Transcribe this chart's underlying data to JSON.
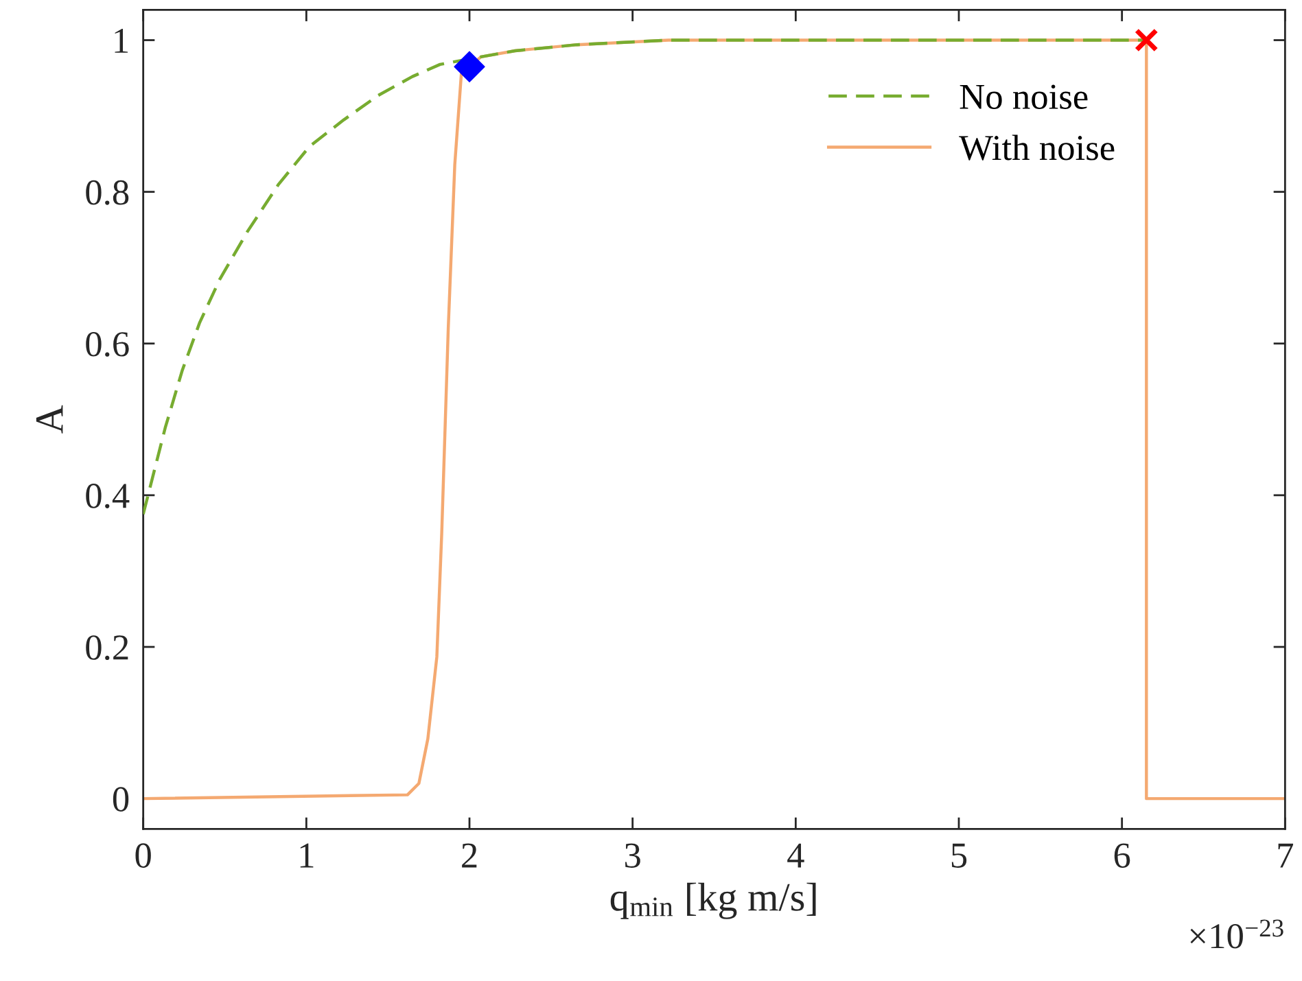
{
  "chart_data": {
    "type": "line",
    "xlabel": "q$_{min}$ [kg m/s]",
    "ylabel": "A",
    "annotations": [
      "×10$^{−23}$"
    ],
    "xlim": [
      0,
      7
    ],
    "ylim": [
      -0.04,
      1.04
    ],
    "xticks": [
      0,
      1,
      2,
      3,
      4,
      5,
      6,
      7
    ],
    "yticks": [
      0,
      0.2,
      0.4,
      0.6,
      0.8,
      1
    ],
    "grid": false,
    "legend": "top right",
    "series": [
      {
        "name": "With noise",
        "color": "#f4a971",
        "line_style": "solid",
        "marker": "none",
        "x": [
          0,
          1.62,
          1.69,
          1.745,
          1.8,
          1.83,
          1.87,
          1.91,
          1.95,
          2.07,
          2.28,
          2.66,
          3.22,
          6.15,
          6.15,
          7
        ],
        "values": [
          0,
          0.005,
          0.02,
          0.079,
          0.187,
          0.35,
          0.62,
          0.836,
          0.955,
          0.978,
          0.986,
          0.994,
          1,
          1,
          0,
          0
        ]
      },
      {
        "name": "No noise",
        "color": "#77ac30",
        "line_style": "dashed",
        "marker": "none",
        "x": [
          0,
          0.135,
          0.24,
          0.345,
          0.47,
          0.64,
          0.83,
          1.02,
          1.23,
          1.44,
          1.65,
          1.82,
          2.07,
          2.28,
          2.66,
          3.22,
          6.15
        ],
        "values": [
          0.375,
          0.489,
          0.565,
          0.627,
          0.685,
          0.748,
          0.81,
          0.86,
          0.895,
          0.927,
          0.952,
          0.968,
          0.978,
          0.986,
          0.994,
          1,
          1
        ]
      },
      {
        "type": "scatter",
        "color": "#0000ff",
        "marker": "diamond",
        "x": [
          2.0
        ],
        "values": [
          0.965
        ]
      },
      {
        "type": "scatter",
        "color": "#ff0000",
        "marker": "cross",
        "x": [
          6.15
        ],
        "values": [
          1
        ]
      }
    ]
  }
}
